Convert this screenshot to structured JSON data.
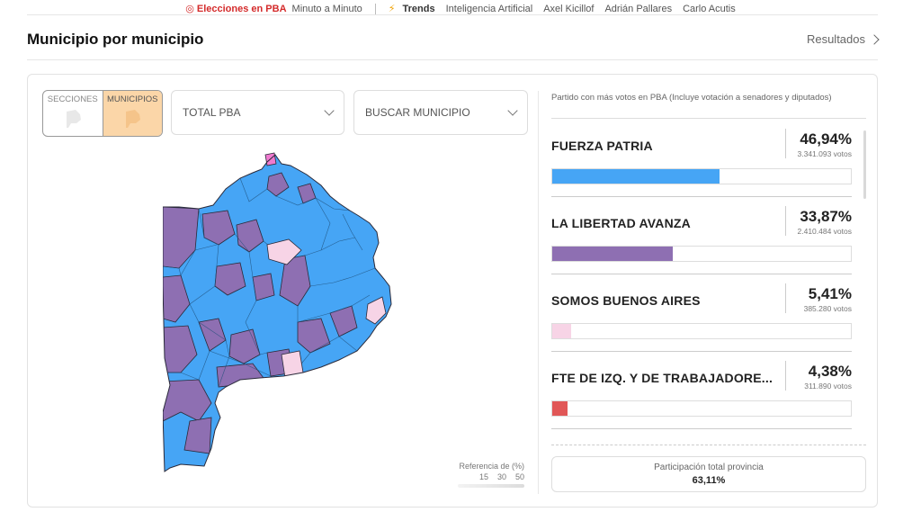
{
  "ticker": {
    "live_label": "◎ Elecciones en PBA",
    "live_sub": "Minuto a Minuto",
    "trends_label": "Trends",
    "trend_links": [
      "Inteligencia Artificial",
      "Axel Kicillof",
      "Adrián Pallares",
      "Carlo Acutis"
    ]
  },
  "section": {
    "title": "Municipio por municipio",
    "results_link": "Resultados"
  },
  "toggle": {
    "secciones": "SECCIONES",
    "municipios": "MUNICIPIOS",
    "active": "municipios"
  },
  "filters": {
    "region": "TOTAL PBA",
    "search": "BUSCAR MUNICIPIO"
  },
  "legend": {
    "title": "Referencia de (%)",
    "ticks": [
      "15",
      "30",
      "50"
    ]
  },
  "panel": {
    "header": "Partido con más votos en PBA (Incluye votación a senadores y diputados)"
  },
  "parties": [
    {
      "name": "FUERZA PATRIA",
      "pct": "46,94%",
      "votes": "3.341.093 votos",
      "share": 0.4694,
      "color": "#46a5f5"
    },
    {
      "name": "LA LIBERTAD AVANZA",
      "pct": "33,87%",
      "votes": "2.410.484 votos",
      "share": 0.3387,
      "color": "#8e6fb2"
    },
    {
      "name": "SOMOS BUENOS AIRES",
      "pct": "5,41%",
      "votes": "385.280 votos",
      "share": 0.0541,
      "color": "#f7d4e6"
    },
    {
      "name": "FTE DE IZQ. Y DE TRABAJADORE...",
      "pct": "4,38%",
      "votes": "311.890 votos",
      "share": 0.0438,
      "color": "#e15757"
    }
  ],
  "participation": {
    "label": "Participación total provincia",
    "value": "63,11%"
  },
  "colors": {
    "fuerza_patria": "#46a5f5",
    "libertad_avanza": "#8e6fb2",
    "somos": "#f7d4e6",
    "pink": "#f07ad0",
    "accent_red": "#d42b2b",
    "toggle_active": "#fbd6a8"
  }
}
